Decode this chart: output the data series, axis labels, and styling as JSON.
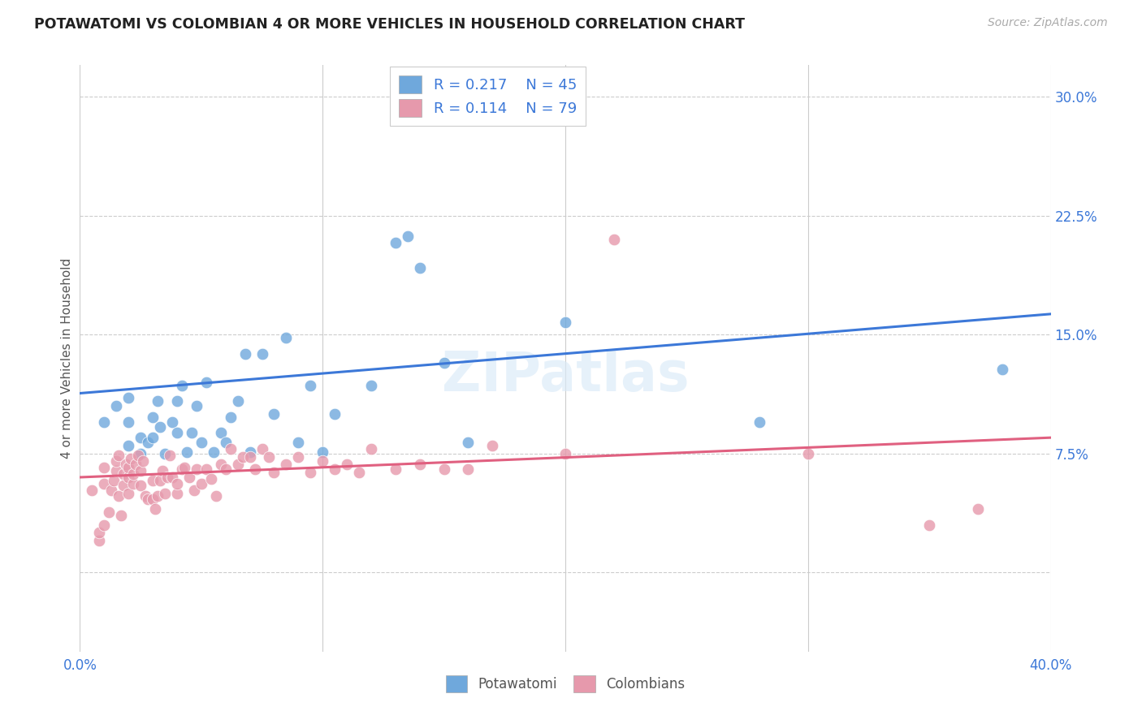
{
  "title": "POTAWATOMI VS COLOMBIAN 4 OR MORE VEHICLES IN HOUSEHOLD CORRELATION CHART",
  "source": "Source: ZipAtlas.com",
  "ylabel": "4 or more Vehicles in Household",
  "xlim": [
    0.0,
    0.4
  ],
  "ylim": [
    -0.05,
    0.32
  ],
  "xticks": [
    0.0,
    0.4
  ],
  "xticklabels": [
    "0.0%",
    "40.0%"
  ],
  "xticks_minor": [
    0.1,
    0.2,
    0.3
  ],
  "yticks_right": [
    0.3,
    0.225,
    0.15,
    0.075
  ],
  "yticklabels_right": [
    "30.0%",
    "22.5%",
    "15.0%",
    "7.5%"
  ],
  "yticks_grid": [
    0.3,
    0.225,
    0.15,
    0.075,
    0.0
  ],
  "xticks_grid": [
    0.0,
    0.1,
    0.2,
    0.3,
    0.4
  ],
  "grid_color": "#cccccc",
  "background_color": "#ffffff",
  "blue_color": "#6fa8dc",
  "pink_color": "#e699ac",
  "blue_line_color": "#3c78d8",
  "pink_line_color": "#e06080",
  "legend_R1": "R = 0.217",
  "legend_N1": "N = 45",
  "legend_R2": "R = 0.114",
  "legend_N2": "N = 79",
  "legend_label1": "Potawatomi",
  "legend_label2": "Colombians",
  "watermark": "ZIPatlas",
  "blue_line_x0": 0.0,
  "blue_line_y0": 0.113,
  "blue_line_x1": 0.4,
  "blue_line_y1": 0.163,
  "pink_line_x0": 0.0,
  "pink_line_y0": 0.06,
  "pink_line_x1": 0.4,
  "pink_line_y1": 0.085,
  "blue_x": [
    0.01,
    0.015,
    0.02,
    0.02,
    0.02,
    0.025,
    0.025,
    0.028,
    0.03,
    0.03,
    0.032,
    0.033,
    0.035,
    0.038,
    0.04,
    0.04,
    0.042,
    0.044,
    0.046,
    0.048,
    0.05,
    0.052,
    0.055,
    0.058,
    0.06,
    0.062,
    0.065,
    0.068,
    0.07,
    0.075,
    0.08,
    0.085,
    0.09,
    0.095,
    0.1,
    0.105,
    0.12,
    0.13,
    0.135,
    0.14,
    0.15,
    0.16,
    0.2,
    0.28,
    0.38
  ],
  "blue_y": [
    0.095,
    0.105,
    0.08,
    0.095,
    0.11,
    0.075,
    0.085,
    0.082,
    0.085,
    0.098,
    0.108,
    0.092,
    0.075,
    0.095,
    0.088,
    0.108,
    0.118,
    0.076,
    0.088,
    0.105,
    0.082,
    0.12,
    0.076,
    0.088,
    0.082,
    0.098,
    0.108,
    0.138,
    0.076,
    0.138,
    0.1,
    0.148,
    0.082,
    0.118,
    0.076,
    0.1,
    0.118,
    0.208,
    0.212,
    0.192,
    0.132,
    0.082,
    0.158,
    0.095,
    0.128
  ],
  "pink_x": [
    0.005,
    0.008,
    0.01,
    0.01,
    0.012,
    0.013,
    0.014,
    0.015,
    0.015,
    0.016,
    0.016,
    0.017,
    0.018,
    0.018,
    0.019,
    0.02,
    0.02,
    0.02,
    0.021,
    0.022,
    0.022,
    0.023,
    0.024,
    0.025,
    0.025,
    0.026,
    0.027,
    0.028,
    0.03,
    0.03,
    0.031,
    0.032,
    0.033,
    0.034,
    0.035,
    0.036,
    0.037,
    0.038,
    0.04,
    0.04,
    0.042,
    0.043,
    0.045,
    0.047,
    0.048,
    0.05,
    0.052,
    0.054,
    0.056,
    0.058,
    0.06,
    0.062,
    0.065,
    0.067,
    0.07,
    0.072,
    0.075,
    0.078,
    0.08,
    0.085,
    0.09,
    0.095,
    0.1,
    0.105,
    0.11,
    0.115,
    0.12,
    0.13,
    0.14,
    0.15,
    0.16,
    0.17,
    0.2,
    0.22,
    0.3,
    0.35,
    0.37,
    0.008,
    0.01
  ],
  "pink_y": [
    0.052,
    0.02,
    0.056,
    0.066,
    0.038,
    0.052,
    0.058,
    0.064,
    0.07,
    0.048,
    0.074,
    0.036,
    0.055,
    0.062,
    0.068,
    0.05,
    0.06,
    0.066,
    0.072,
    0.056,
    0.062,
    0.068,
    0.074,
    0.055,
    0.064,
    0.07,
    0.048,
    0.046,
    0.046,
    0.058,
    0.04,
    0.048,
    0.058,
    0.064,
    0.05,
    0.06,
    0.074,
    0.06,
    0.05,
    0.056,
    0.065,
    0.066,
    0.06,
    0.052,
    0.065,
    0.056,
    0.065,
    0.059,
    0.048,
    0.068,
    0.065,
    0.078,
    0.068,
    0.073,
    0.073,
    0.065,
    0.078,
    0.073,
    0.063,
    0.068,
    0.073,
    0.063,
    0.07,
    0.065,
    0.068,
    0.063,
    0.078,
    0.065,
    0.068,
    0.065,
    0.065,
    0.08,
    0.075,
    0.21,
    0.075,
    0.03,
    0.04,
    0.025,
    0.03
  ]
}
